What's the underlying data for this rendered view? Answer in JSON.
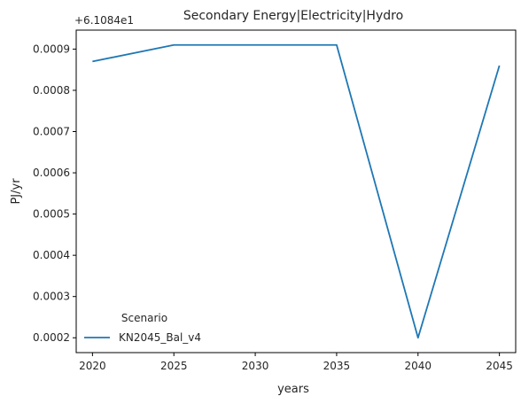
{
  "chart_data": {
    "type": "line",
    "title": "Secondary Energy|Electricity|Hydro",
    "xlabel": "years",
    "ylabel": "PJ/yr",
    "y_offset_label": "+6.1084e1",
    "x": [
      2020,
      2025,
      2030,
      2035,
      2040,
      2045
    ],
    "series": [
      {
        "name": "KN2045_Bal_v4",
        "color": "#1f77b4",
        "values": [
          0.00087,
          0.00091,
          0.00091,
          0.00091,
          0.0002,
          0.00086
        ]
      }
    ],
    "xlim": [
      2019,
      2046
    ],
    "ylim": [
      0.000164,
      0.000946
    ],
    "xticks": [
      2020,
      2025,
      2030,
      2035,
      2040,
      2045
    ],
    "yticks": [
      0.0002,
      0.0003,
      0.0004,
      0.0005,
      0.0006,
      0.0007,
      0.0008,
      0.0009
    ],
    "ytick_labels": [
      "0.0002",
      "0.0003",
      "0.0004",
      "0.0005",
      "0.0006",
      "0.0007",
      "0.0008",
      "0.0009"
    ],
    "legend": {
      "title": "Scenario",
      "placement": "lower-left"
    },
    "grid": false
  }
}
